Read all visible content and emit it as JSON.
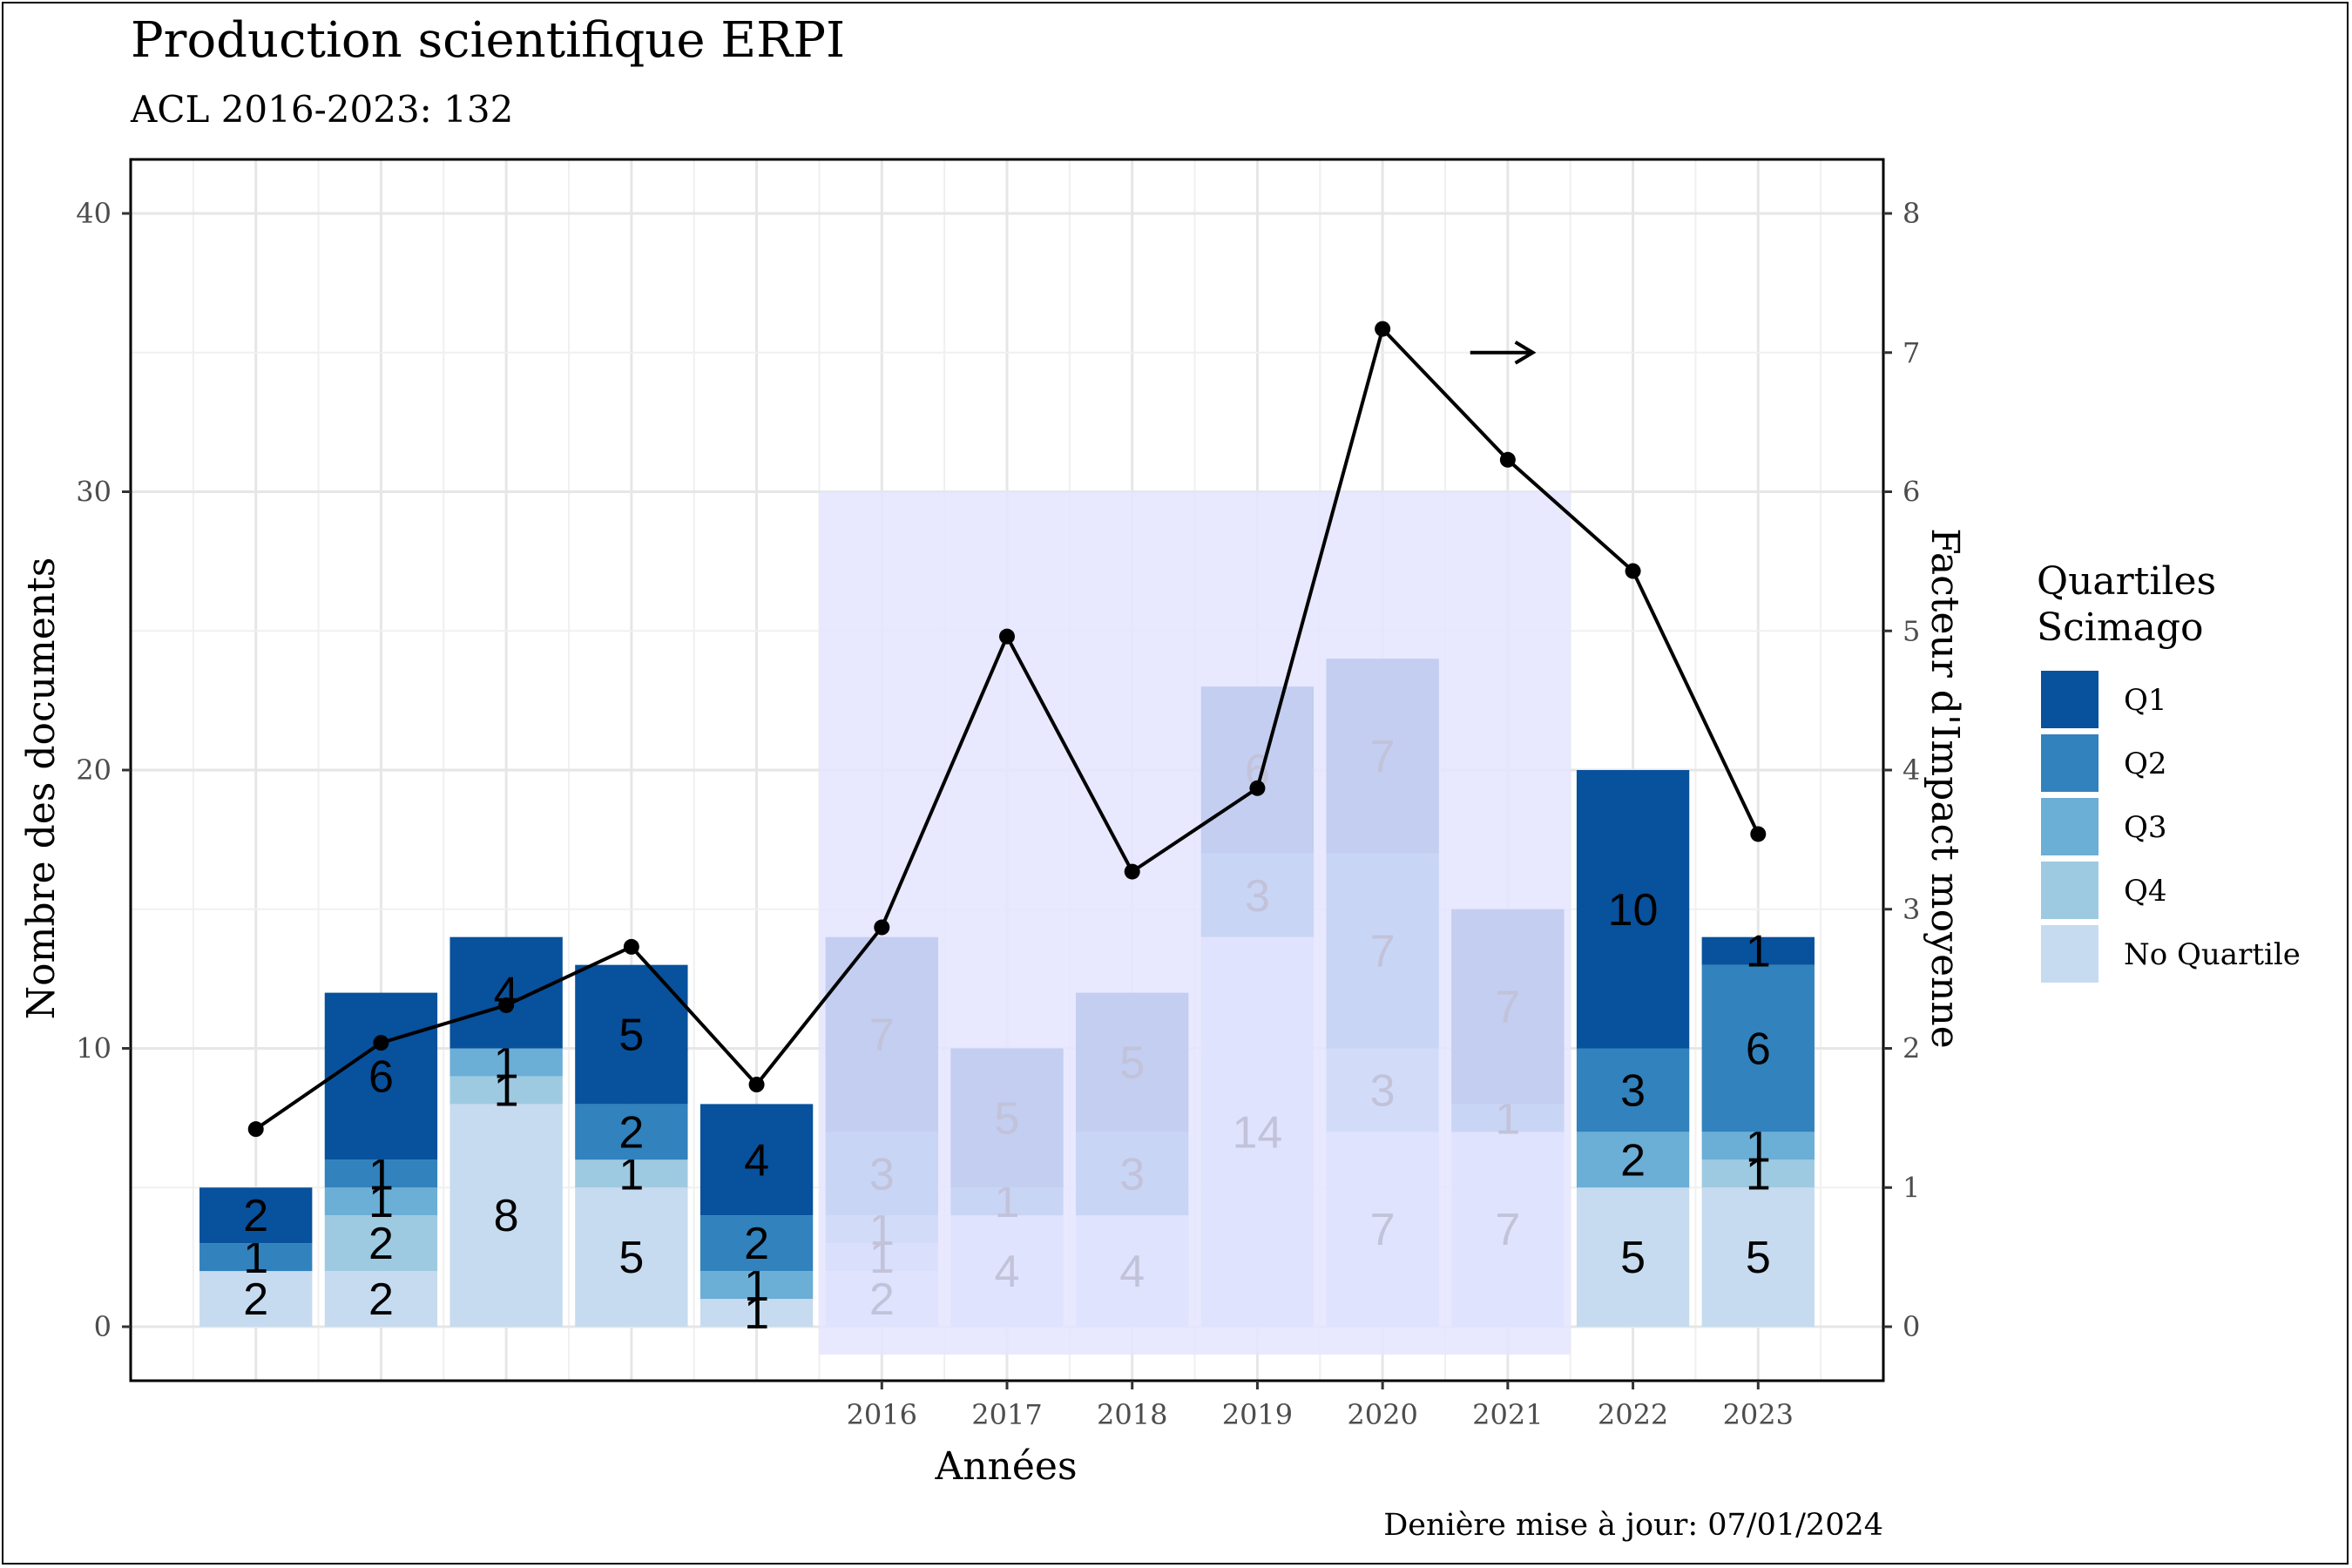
{
  "chart_data": {
    "type": "bar",
    "stacked": true,
    "title": "Production scientifique ERPI",
    "subtitle": "ACL 2016-2023: 132",
    "xlabel": "Années",
    "ylabel": "Nombre des documents",
    "ylabel_right": "Facteur d'Impact moyenne",
    "caption": "Denière mise à jour: 07/01/2024",
    "legend_title_line1": "Quartiles",
    "legend_title_line2": "Scimago",
    "legend_position": "right",
    "ylim": [
      0,
      40
    ],
    "y_ticks": [
      0,
      10,
      20,
      30,
      40
    ],
    "y2lim": [
      0,
      8
    ],
    "y2_ticks": [
      0,
      1,
      2,
      3,
      4,
      5,
      6,
      7,
      8
    ],
    "x_positions": [
      2011,
      2012,
      2013,
      2014,
      2015,
      2016,
      2017,
      2018,
      2019,
      2020,
      2021,
      2022,
      2023
    ],
    "xlim": [
      2010.0,
      2024.0
    ],
    "x_tick_labels": [
      "2016",
      "2017",
      "2018",
      "2019",
      "2020",
      "2021",
      "2022",
      "2023"
    ],
    "x_tick_values": [
      2016,
      2017,
      2018,
      2019,
      2020,
      2021,
      2022,
      2023
    ],
    "series": [
      {
        "name": "No Quartile",
        "color": "#c6dbef",
        "values": [
          2,
          2,
          8,
          5,
          1,
          2,
          4,
          4,
          14,
          7,
          7,
          5,
          5
        ]
      },
      {
        "name": "Q4",
        "color": "#9ecae1",
        "values": [
          0,
          2,
          1,
          1,
          0,
          1,
          0,
          0,
          0,
          0,
          0,
          0,
          1
        ]
      },
      {
        "name": "Q3",
        "color": "#6baed6",
        "values": [
          0,
          1,
          1,
          0,
          1,
          1,
          0,
          0,
          0,
          3,
          0,
          2,
          1
        ]
      },
      {
        "name": "Q2",
        "color": "#3182bd",
        "values": [
          1,
          1,
          0,
          2,
          2,
          3,
          1,
          3,
          3,
          7,
          1,
          3,
          6
        ]
      },
      {
        "name": "Q1",
        "color": "#08519c",
        "values": [
          2,
          6,
          4,
          5,
          4,
          7,
          5,
          5,
          6,
          7,
          7,
          10,
          1
        ]
      }
    ],
    "legend_order": [
      "Q1",
      "Q2",
      "Q3",
      "Q4",
      "No Quartile"
    ],
    "impact_factor_line": {
      "values": [
        1.42,
        2.04,
        2.31,
        2.73,
        1.74,
        2.87,
        4.96,
        3.27,
        3.87,
        7.17,
        6.23,
        5.43,
        3.54
      ],
      "color": "#000000"
    },
    "highlight_region": {
      "x_start": 2015.5,
      "x_end": 2021.5,
      "y_start": -1,
      "y_end": 30,
      "color": "#e4e4ff"
    },
    "arrow_annotation": {
      "x_start": 2020.7,
      "x_end": 2021.2,
      "y": 35
    }
  }
}
